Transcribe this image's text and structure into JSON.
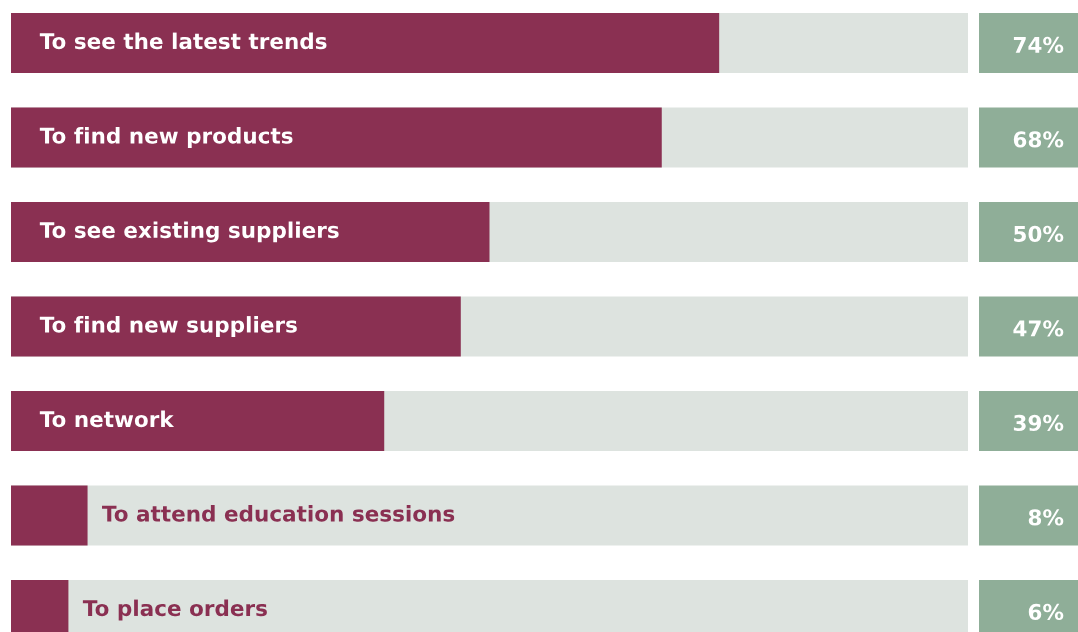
{
  "chart_data": {
    "type": "bar",
    "orientation": "horizontal",
    "categories": [
      "To see the latest trends",
      "To find new products",
      "To see existing suppliers",
      "To find new suppliers",
      "To network",
      "To attend education sessions",
      "To place orders"
    ],
    "series": [
      {
        "color": "#8a3052",
        "values": [
          74,
          68,
          50,
          47,
          39,
          8,
          6
        ],
        "value_labels": [
          "74%",
          "68%",
          "50%",
          "47%",
          "39%",
          "8%",
          "6%"
        ]
      }
    ],
    "xlim": [
      0,
      100
    ]
  }
}
